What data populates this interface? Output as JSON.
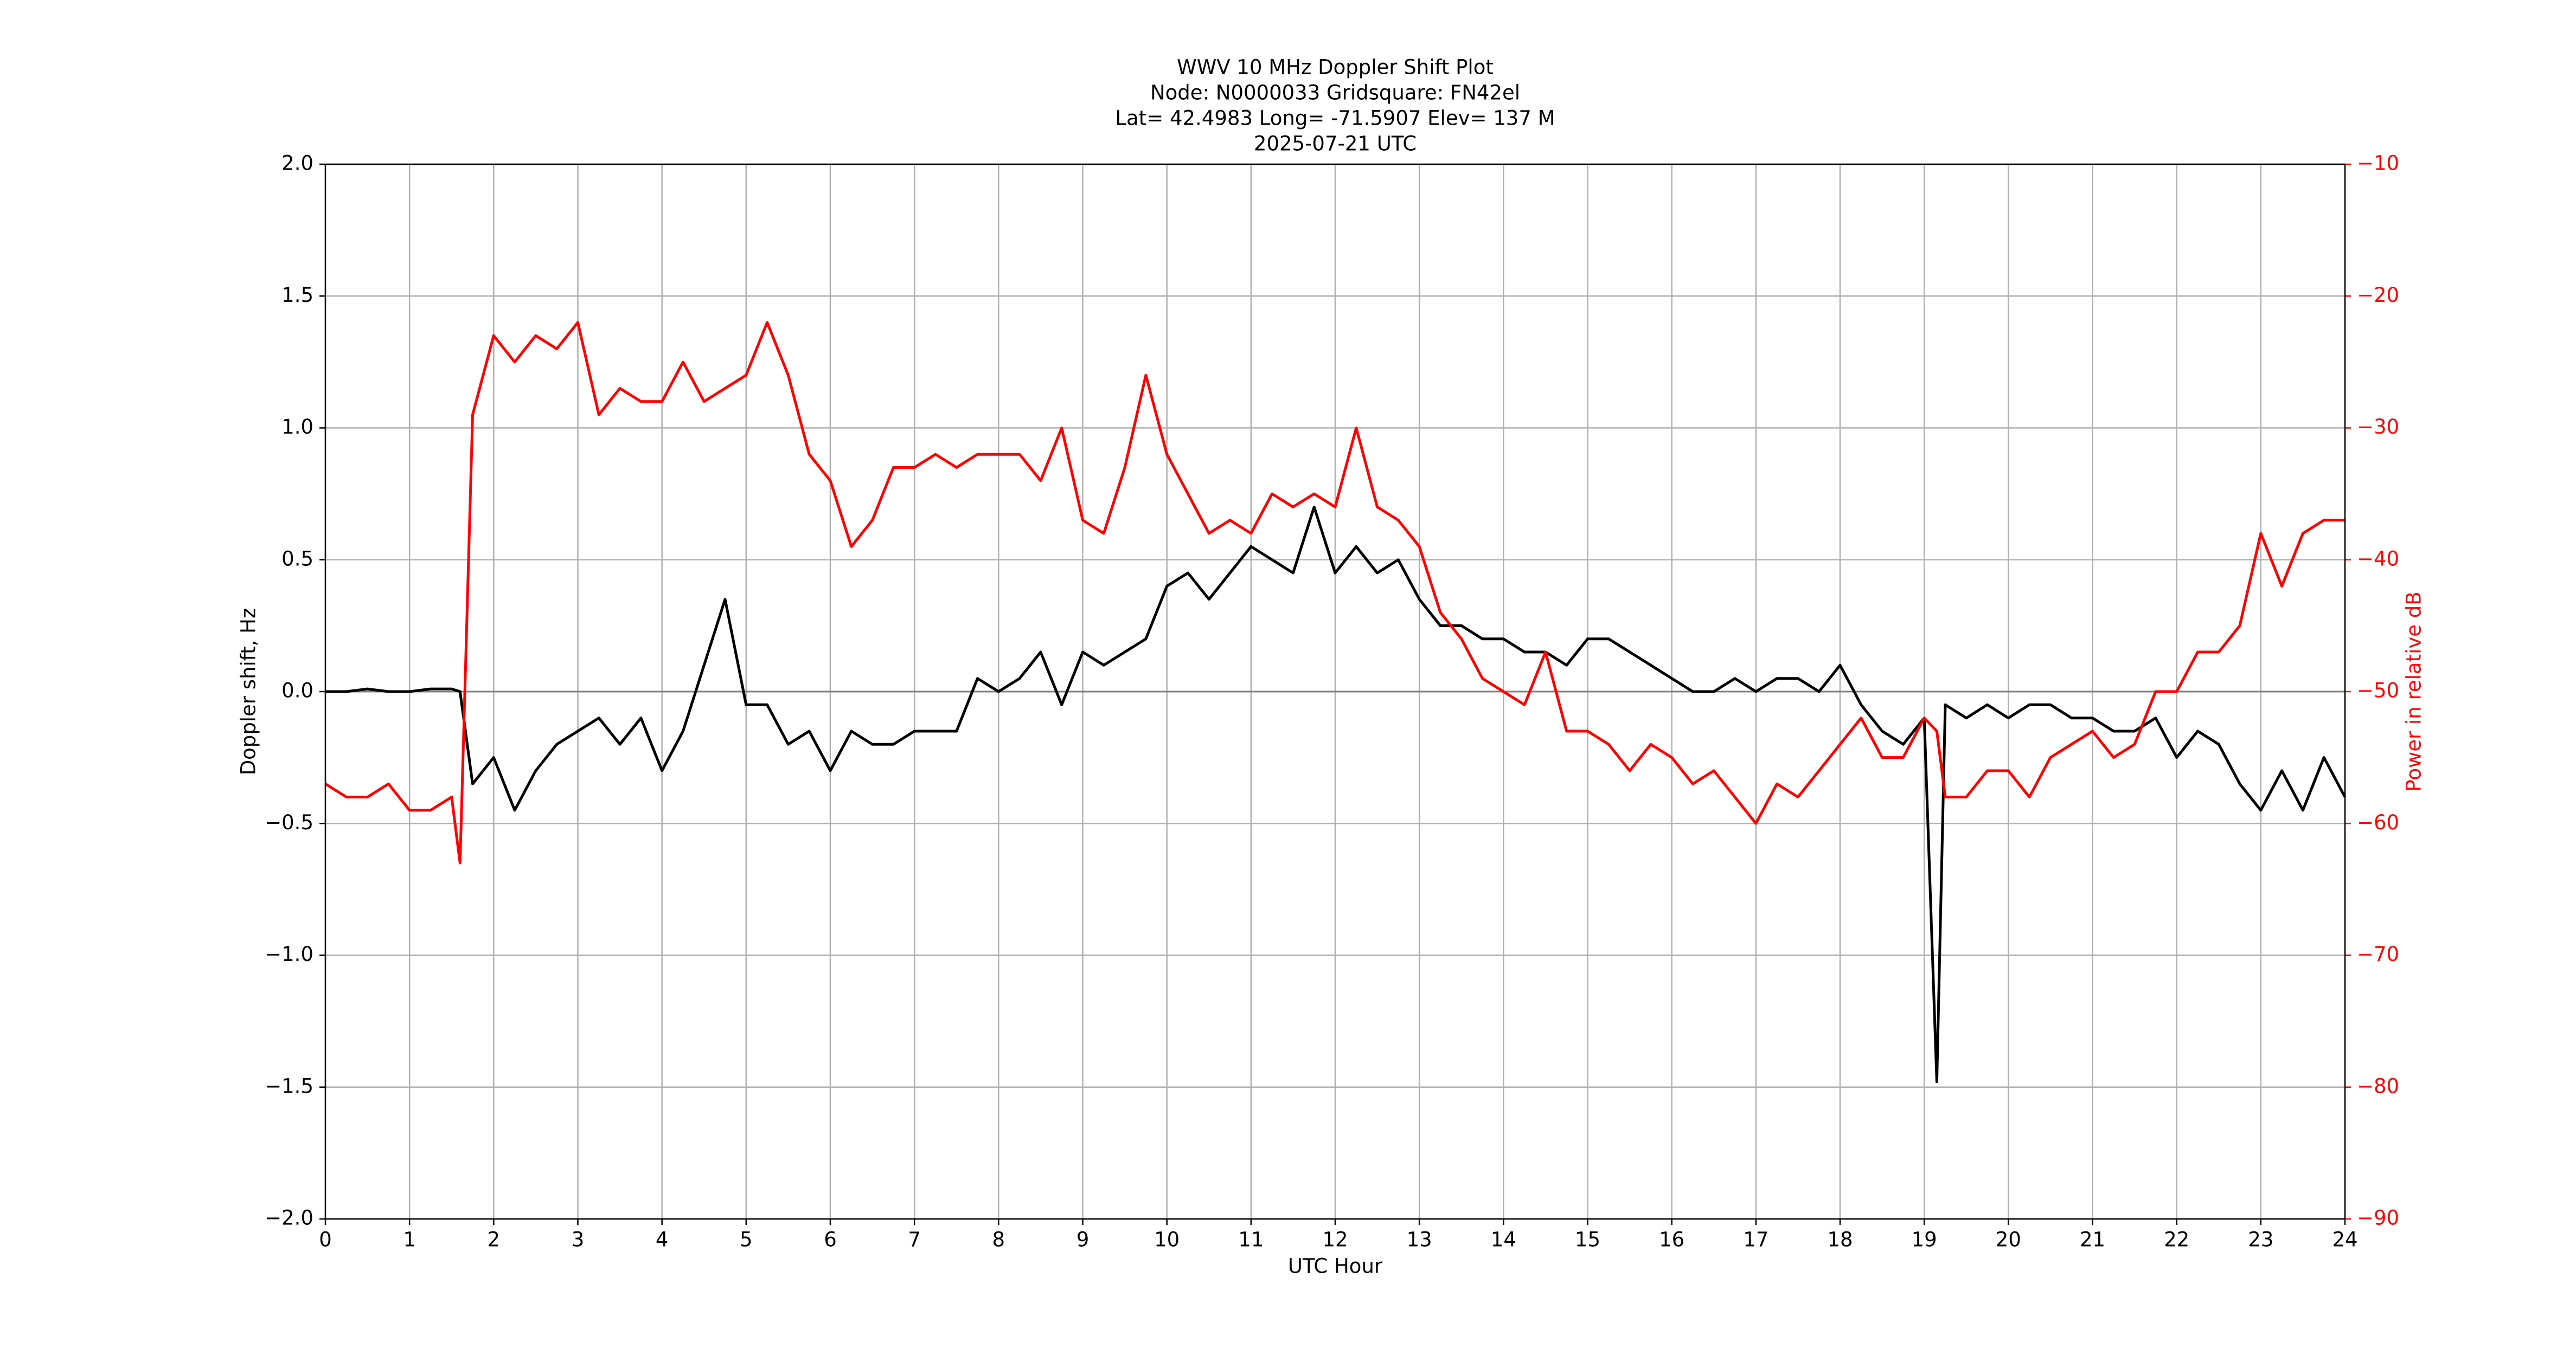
{
  "chart_data": {
    "type": "line",
    "title_lines": [
      "WWV 10 MHz Doppler Shift Plot",
      "Node:  N0000033     Gridsquare:  FN42el",
      "Lat= 42.4983    Long= -71.5907    Elev= 137 M",
      "2025-07-21  UTC"
    ],
    "xlabel": "UTC Hour",
    "ylabel": "Doppler shift, Hz",
    "y2label": "Power in relative dB",
    "y2color": "#ff0000",
    "x": [
      0,
      0.25,
      0.5,
      0.75,
      1,
      1.25,
      1.5,
      1.6,
      1.75,
      2,
      2.25,
      2.5,
      2.75,
      3,
      3.25,
      3.5,
      3.75,
      4,
      4.25,
      4.5,
      4.75,
      5,
      5.25,
      5.5,
      5.75,
      6,
      6.25,
      6.5,
      6.75,
      7,
      7.25,
      7.5,
      7.75,
      8,
      8.25,
      8.5,
      8.75,
      9,
      9.25,
      9.5,
      9.75,
      10,
      10.25,
      10.5,
      10.75,
      11,
      11.25,
      11.5,
      11.75,
      12,
      12.25,
      12.5,
      12.75,
      13,
      13.25,
      13.5,
      13.75,
      14,
      14.25,
      14.5,
      14.75,
      15,
      15.25,
      15.5,
      15.75,
      16,
      16.25,
      16.5,
      16.75,
      17,
      17.25,
      17.5,
      17.75,
      18,
      18.25,
      18.5,
      18.75,
      19,
      19.15,
      19.25,
      19.5,
      19.75,
      20,
      20.25,
      20.5,
      20.75,
      21,
      21.25,
      21.5,
      21.75,
      22,
      22.25,
      22.5,
      22.75,
      23,
      23.25,
      23.5,
      23.75,
      24
    ],
    "series": [
      {
        "name": "Doppler shift",
        "color": "#000000",
        "axis": "y",
        "values": [
          0,
          0,
          0.01,
          0,
          0,
          0.01,
          0.01,
          0,
          -0.35,
          -0.25,
          -0.45,
          -0.3,
          -0.2,
          -0.15,
          -0.1,
          -0.2,
          -0.1,
          -0.3,
          -0.15,
          0.1,
          0.35,
          -0.05,
          -0.05,
          -0.2,
          -0.15,
          -0.3,
          -0.15,
          -0.2,
          -0.2,
          -0.15,
          -0.15,
          -0.15,
          0.05,
          0,
          0.05,
          0.15,
          -0.05,
          0.15,
          0.1,
          0.15,
          0.2,
          0.4,
          0.45,
          0.35,
          0.45,
          0.55,
          0.5,
          0.45,
          0.7,
          0.45,
          0.55,
          0.45,
          0.5,
          0.35,
          0.25,
          0.25,
          0.2,
          0.2,
          0.15,
          0.15,
          0.1,
          0.2,
          0.2,
          0.15,
          0.1,
          0.05,
          0,
          0,
          0.05,
          0,
          0.05,
          0.05,
          0,
          0.1,
          -0.05,
          -0.15,
          -0.2,
          -0.1,
          -1.48,
          -0.05,
          -0.1,
          -0.05,
          -0.1,
          -0.05,
          -0.05,
          -0.1,
          -0.1,
          -0.15,
          -0.15,
          -0.1,
          -0.25,
          -0.15,
          -0.2,
          -0.35,
          -0.45,
          -0.3,
          -0.45,
          -0.25,
          -0.4
        ]
      },
      {
        "name": "Power",
        "color": "#ff0000",
        "axis": "y2",
        "values": [
          -57,
          -58,
          -58,
          -57,
          -59,
          -59,
          -58,
          -63,
          -29,
          -23,
          -25,
          -23,
          -24,
          -22,
          -29,
          -27,
          -28,
          -28,
          -25,
          -28,
          -27,
          -26,
          -22,
          -26,
          -32,
          -34,
          -39,
          -37,
          -33,
          -33,
          -32,
          -33,
          -32,
          -32,
          -32,
          -34,
          -30,
          -37,
          -38,
          -33,
          -26,
          -32,
          -35,
          -38,
          -37,
          -38,
          -35,
          -36,
          -35,
          -36,
          -30,
          -36,
          -37,
          -39,
          -44,
          -46,
          -49,
          -50,
          -51,
          -47,
          -53,
          -53,
          -54,
          -56,
          -54,
          -55,
          -57,
          -56,
          -58,
          -60,
          -57,
          -58,
          -56,
          -54,
          -52,
          -55,
          -55,
          -52,
          -53,
          -58,
          -58,
          -56,
          -56,
          -58,
          -55,
          -54,
          -53,
          -55,
          -54,
          -50,
          -50,
          -47,
          -47,
          -45,
          -38,
          -42,
          -38,
          -37,
          -37
        ]
      }
    ],
    "xlim": [
      0,
      24
    ],
    "xticks": [
      0,
      1,
      2,
      3,
      4,
      5,
      6,
      7,
      8,
      9,
      10,
      11,
      12,
      13,
      14,
      15,
      16,
      17,
      18,
      19,
      20,
      21,
      22,
      23,
      24
    ],
    "ylim": [
      -2,
      2
    ],
    "yticks": [
      {
        "value": -2,
        "label": "−2.0"
      },
      {
        "value": -1.5,
        "label": "−1.5"
      },
      {
        "value": -1,
        "label": "−1.0"
      },
      {
        "value": -0.5,
        "label": "−0.5"
      },
      {
        "value": 0,
        "label": "0.0"
      },
      {
        "value": 0.5,
        "label": "0.5"
      },
      {
        "value": 1,
        "label": "1.0"
      },
      {
        "value": 1.5,
        "label": "1.5"
      },
      {
        "value": 2,
        "label": "2.0"
      }
    ],
    "y2lim": [
      -90,
      -10
    ],
    "y2ticks": [
      {
        "value": -90,
        "label": "−90"
      },
      {
        "value": -80,
        "label": "−80"
      },
      {
        "value": -70,
        "label": "−70"
      },
      {
        "value": -60,
        "label": "−60"
      },
      {
        "value": -50,
        "label": "−50"
      },
      {
        "value": -40,
        "label": "−40"
      },
      {
        "value": -30,
        "label": "−30"
      },
      {
        "value": -20,
        "label": "−20"
      },
      {
        "value": -10,
        "label": "−10"
      }
    ],
    "grid": true,
    "hline": 0
  }
}
